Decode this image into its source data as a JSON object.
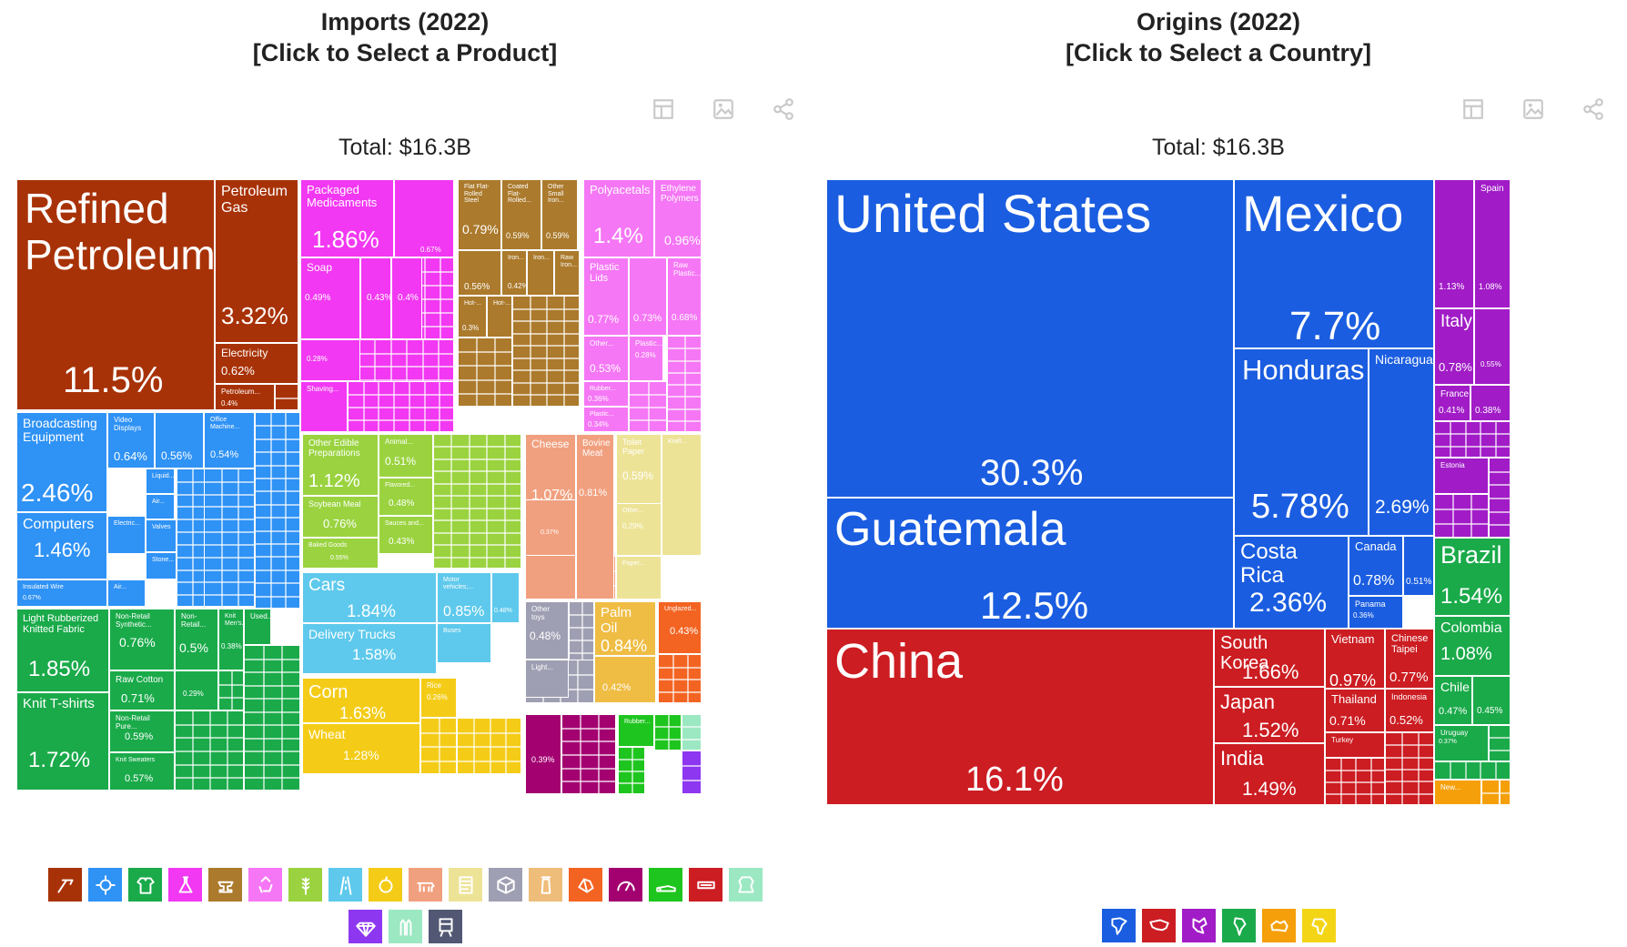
{
  "imports": {
    "title_line1": "Imports (2022)",
    "title_line2": "[Click to Select a Product]",
    "total": "Total: $16.3B",
    "tools": [
      "table-icon",
      "image-icon",
      "share-icon"
    ],
    "colors": {
      "mineral": "#a83207",
      "machinery": "#2f92f5",
      "textiles": "#1aaa4a",
      "chemicals": "#f238f2",
      "metals": "#ab7a2c",
      "plastics": "#f577f5",
      "vegetable": "#9ad33f",
      "transport": "#5ec9ec",
      "food": "#f4cc17",
      "animal": "#f1a07f",
      "paper": "#ede396",
      "instruments": "#9f9fb3",
      "misc": "#f36423",
      "arms": "#a30070",
      "footwear": "#1fc51f",
      "animal_hides": "#cc1d22",
      "stone": "#8e37f1",
      "weapons_light": "#9be8c2",
      "arts": "#525873"
    },
    "legend": [
      {
        "name": "mineral-products-icon",
        "color": "#a83207"
      },
      {
        "name": "machines-icon",
        "color": "#2f92f5"
      },
      {
        "name": "textiles-icon",
        "color": "#1aaa4a"
      },
      {
        "name": "chemical-products-icon",
        "color": "#f238f2"
      },
      {
        "name": "metals-icon",
        "color": "#ab7a2c"
      },
      {
        "name": "plastics-rubbers-icon",
        "color": "#f577f5"
      },
      {
        "name": "vegetable-products-icon",
        "color": "#9ad33f"
      },
      {
        "name": "transportation-icon",
        "color": "#5ec9ec"
      },
      {
        "name": "foodstuffs-icon",
        "color": "#f4cc17"
      },
      {
        "name": "animal-products-icon",
        "color": "#f1a07f"
      },
      {
        "name": "paper-goods-icon",
        "color": "#ede396"
      },
      {
        "name": "instruments-icon",
        "color": "#9f9fb3"
      },
      {
        "name": "animal-fats-icon",
        "color": "#efbd7a"
      },
      {
        "name": "stone-and-glass-icon",
        "color": "#f36423"
      },
      {
        "name": "precision-instruments-icon",
        "color": "#a30070"
      },
      {
        "name": "footwear-icon",
        "color": "#1fc51f"
      },
      {
        "name": "miscellaneous-icon",
        "color": "#cc1d22"
      },
      {
        "name": "animal-hides-icon",
        "color": "#9be8c2"
      },
      {
        "name": "precious-metals-icon",
        "color": "#8e37f1"
      },
      {
        "name": "weapons-icon",
        "color": "#9be8c2"
      },
      {
        "name": "arts-and-antiques-icon",
        "color": "#525873"
      }
    ]
  },
  "origins": {
    "title_line1": "Origins (2022)",
    "title_line2": "[Click to Select a Country]",
    "total": "Total: $16.3B",
    "tools": [
      "table-icon",
      "image-icon",
      "share-icon"
    ],
    "legend": [
      {
        "name": "north-america-icon",
        "color": "#1a5de0"
      },
      {
        "name": "asia-icon",
        "color": "#cc1d22"
      },
      {
        "name": "europe-icon",
        "color": "#a11cc7"
      },
      {
        "name": "south-america-icon",
        "color": "#1aaa4a"
      },
      {
        "name": "oceania-icon",
        "color": "#f5a00a"
      },
      {
        "name": "africa-icon",
        "color": "#f4d516"
      }
    ]
  },
  "chart_data": [
    {
      "type": "treemap",
      "title": "Imports (2022)",
      "subtitle": "[Click to Select a Product]",
      "total": "$16.3B",
      "unit": "percent of total imports",
      "labeled": [
        {
          "label": "Refined Petroleum",
          "value": "11.5%",
          "group": "mineral"
        },
        {
          "label": "Petroleum Gas",
          "value": "3.32%",
          "group": "mineral"
        },
        {
          "label": "Electricity",
          "value": "0.62%",
          "group": "mineral"
        },
        {
          "label": "Petroleum...",
          "value": "0.4%",
          "group": "mineral"
        },
        {
          "label": "Packaged Medicaments",
          "value": "1.86%",
          "group": "chemicals"
        },
        {
          "label": "",
          "value": "0.67%",
          "group": "chemicals"
        },
        {
          "label": "Soap",
          "value": "0.49%",
          "group": "chemicals"
        },
        {
          "label": "",
          "value": "0.43%",
          "group": "chemicals"
        },
        {
          "label": "",
          "value": "0.4%",
          "group": "chemicals"
        },
        {
          "label": "",
          "value": "0.28%",
          "group": "chemicals"
        },
        {
          "label": "Shaving...",
          "value": "",
          "group": "chemicals"
        },
        {
          "label": "Flat Flat-Rolled Steel",
          "value": "0.79%",
          "group": "metals"
        },
        {
          "label": "Coated Flat-Rolled...",
          "value": "0.59%",
          "group": "metals"
        },
        {
          "label": "Other Small Iron...",
          "value": "0.59%",
          "group": "metals"
        },
        {
          "label": "",
          "value": "0.56%",
          "group": "metals"
        },
        {
          "label": "Iron...",
          "value": "0.42%",
          "group": "metals"
        },
        {
          "label": "Iron...",
          "value": "",
          "group": "metals"
        },
        {
          "label": "Raw Iron...",
          "value": "",
          "group": "metals"
        },
        {
          "label": "Hot-...",
          "value": "0.3%",
          "group": "metals"
        },
        {
          "label": "Hot-...",
          "value": "",
          "group": "metals"
        },
        {
          "label": "Polyacetals",
          "value": "1.4%",
          "group": "plastics"
        },
        {
          "label": "Ethylene Polymers",
          "value": "0.96%",
          "group": "plastics"
        },
        {
          "label": "Plastic Lids",
          "value": "0.77%",
          "group": "plastics"
        },
        {
          "label": "",
          "value": "0.73%",
          "group": "plastics"
        },
        {
          "label": "Raw Plastic...",
          "value": "0.68%",
          "group": "plastics"
        },
        {
          "label": "Other...",
          "value": "0.53%",
          "group": "plastics"
        },
        {
          "label": "Plastic...",
          "value": "0.28%",
          "group": "plastics"
        },
        {
          "label": "Rubber...",
          "value": "0.36%",
          "group": "plastics"
        },
        {
          "label": "Plastic...",
          "value": "0.34%",
          "group": "plastics"
        },
        {
          "label": "Broadcasting Equipment",
          "value": "2.46%",
          "group": "machinery"
        },
        {
          "label": "Video Displays",
          "value": "0.64%",
          "group": "machinery"
        },
        {
          "label": "",
          "value": "0.56%",
          "group": "machinery"
        },
        {
          "label": "Office Machine...",
          "value": "0.54%",
          "group": "machinery"
        },
        {
          "label": "Computers",
          "value": "1.46%",
          "group": "machinery"
        },
        {
          "label": "Insulated Wire",
          "value": "0.67%",
          "group": "machinery"
        },
        {
          "label": "Liquid...",
          "value": "",
          "group": "machinery"
        },
        {
          "label": "Air...",
          "value": "",
          "group": "machinery"
        },
        {
          "label": "Electric...",
          "value": "",
          "group": "machinery"
        },
        {
          "label": "Valves",
          "value": "",
          "group": "machinery"
        },
        {
          "label": "Stone...",
          "value": "",
          "group": "machinery"
        },
        {
          "label": "Air...",
          "value": "",
          "group": "machinery"
        },
        {
          "label": "Light Rubberized Knitted Fabric",
          "value": "1.85%",
          "group": "textiles"
        },
        {
          "label": "Non-Retail Synthetic...",
          "value": "0.76%",
          "group": "textiles"
        },
        {
          "label": "Non-Retail...",
          "value": "0.5%",
          "group": "textiles"
        },
        {
          "label": "Knit Men's...",
          "value": "0.38%",
          "group": "textiles"
        },
        {
          "label": "Used...",
          "value": "",
          "group": "textiles"
        },
        {
          "label": "Raw Cotton",
          "value": "0.71%",
          "group": "textiles"
        },
        {
          "label": "",
          "value": "0.29%",
          "group": "textiles"
        },
        {
          "label": "Knit T-shirts",
          "value": "1.72%",
          "group": "textiles"
        },
        {
          "label": "Non-Retail Pure...",
          "value": "0.59%",
          "group": "textiles"
        },
        {
          "label": "Knit Sweaters",
          "value": "0.57%",
          "group": "textiles"
        },
        {
          "label": "Other Edible Preparations",
          "value": "1.12%",
          "group": "vegetable"
        },
        {
          "label": "Animal...",
          "value": "0.51%",
          "group": "vegetable"
        },
        {
          "label": "Flavored...",
          "value": "0.48%",
          "group": "vegetable"
        },
        {
          "label": "Soybean Meal",
          "value": "0.76%",
          "group": "vegetable"
        },
        {
          "label": "Sauces and...",
          "value": "0.43%",
          "group": "vegetable"
        },
        {
          "label": "Baked Goods",
          "value": "0.55%",
          "group": "vegetable"
        },
        {
          "label": "Cheese",
          "value": "1.07%",
          "group": "animal"
        },
        {
          "label": "Bovine Meat",
          "value": "0.81%",
          "group": "animal"
        },
        {
          "label": "",
          "value": "0.37%",
          "group": "animal"
        },
        {
          "label": "Toilet Paper",
          "value": "0.59%",
          "group": "paper"
        },
        {
          "label": "Kraft...",
          "value": "",
          "group": "paper"
        },
        {
          "label": "Other...",
          "value": "0.29%",
          "group": "paper"
        },
        {
          "label": "Paper...",
          "value": "",
          "group": "paper"
        },
        {
          "label": "Cars",
          "value": "1.84%",
          "group": "transport"
        },
        {
          "label": "Motor vehicles;...",
          "value": "0.85%",
          "group": "transport"
        },
        {
          "label": "",
          "value": "0.48%",
          "group": "transport"
        },
        {
          "label": "Delivery Trucks",
          "value": "1.58%",
          "group": "transport"
        },
        {
          "label": "Buses",
          "value": "",
          "group": "transport"
        },
        {
          "label": "Corn",
          "value": "1.63%",
          "group": "food"
        },
        {
          "label": "Rice",
          "value": "0.26%",
          "group": "food"
        },
        {
          "label": "Wheat",
          "value": "1.28%",
          "group": "food"
        },
        {
          "label": "Other toys",
          "value": "0.48%",
          "group": "instruments"
        },
        {
          "label": "Light...",
          "value": "",
          "group": "instruments"
        },
        {
          "label": "Palm Oil",
          "value": "0.84%",
          "group": "animal_fats"
        },
        {
          "label": "",
          "value": "0.42%",
          "group": "animal_fats"
        },
        {
          "label": "Unglazed...",
          "value": "0.43%",
          "group": "misc"
        },
        {
          "label": "",
          "value": "0.39%",
          "group": "arms"
        },
        {
          "label": "Rubber...",
          "value": "",
          "group": "footwear"
        }
      ]
    },
    {
      "type": "treemap",
      "title": "Origins (2022)",
      "subtitle": "[Click to Select a Country]",
      "total": "$16.3B",
      "unit": "percent of total imports",
      "labeled": [
        {
          "label": "United States",
          "value": "30.3%",
          "region": "north-america"
        },
        {
          "label": "Guatemala",
          "value": "12.5%",
          "region": "north-america"
        },
        {
          "label": "Mexico",
          "value": "7.7%",
          "region": "north-america"
        },
        {
          "label": "Honduras",
          "value": "5.78%",
          "region": "north-america"
        },
        {
          "label": "Nicaragua",
          "value": "2.69%",
          "region": "north-america"
        },
        {
          "label": "Costa Rica",
          "value": "2.36%",
          "region": "north-america"
        },
        {
          "label": "Canada",
          "value": "0.78%",
          "region": "north-america"
        },
        {
          "label": "",
          "value": "0.51%",
          "region": "north-america"
        },
        {
          "label": "Panama",
          "value": "0.36%",
          "region": "north-america"
        },
        {
          "label": "China",
          "value": "16.1%",
          "region": "asia"
        },
        {
          "label": "South Korea",
          "value": "1.66%",
          "region": "asia"
        },
        {
          "label": "Japan",
          "value": "1.52%",
          "region": "asia"
        },
        {
          "label": "India",
          "value": "1.49%",
          "region": "asia"
        },
        {
          "label": "Vietnam",
          "value": "0.97%",
          "region": "asia"
        },
        {
          "label": "Chinese Taipei",
          "value": "0.77%",
          "region": "asia"
        },
        {
          "label": "Thailand",
          "value": "0.71%",
          "region": "asia"
        },
        {
          "label": "Indonesia",
          "value": "0.52%",
          "region": "asia"
        },
        {
          "label": "Turkey",
          "value": "",
          "region": "asia"
        },
        {
          "label": "",
          "value": "1.13%",
          "region": "europe"
        },
        {
          "label": "Spain",
          "value": "1.08%",
          "region": "europe"
        },
        {
          "label": "Italy",
          "value": "0.78%",
          "region": "europe"
        },
        {
          "label": "",
          "value": "0.55%",
          "region": "europe"
        },
        {
          "label": "France",
          "value": "0.41%",
          "region": "europe"
        },
        {
          "label": "",
          "value": "0.38%",
          "region": "europe"
        },
        {
          "label": "Estonia",
          "value": "",
          "region": "europe"
        },
        {
          "label": "Brazil",
          "value": "1.54%",
          "region": "south-america"
        },
        {
          "label": "Colombia",
          "value": "1.08%",
          "region": "south-america"
        },
        {
          "label": "Chile",
          "value": "0.47%",
          "region": "south-america"
        },
        {
          "label": "",
          "value": "0.45%",
          "region": "south-america"
        },
        {
          "label": "Uruguay",
          "value": "0.37%",
          "region": "south-america"
        },
        {
          "label": "New...",
          "value": "",
          "region": "oceania"
        }
      ]
    }
  ]
}
